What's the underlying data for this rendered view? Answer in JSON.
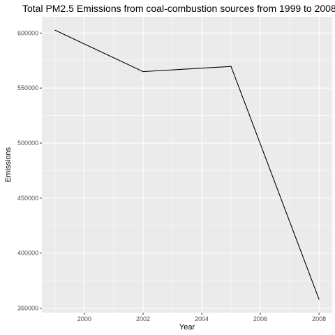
{
  "chart_data": {
    "type": "line",
    "title": "Total PM2.5 Emissions from coal-combustion sources from 1999 to 2008",
    "xlabel": "Year",
    "ylabel": "Emissions",
    "x": [
      1999,
      2002,
      2005,
      2008
    ],
    "y": [
      602624,
      564940,
      569654,
      358084
    ],
    "xlim": [
      1998.55,
      2008.45
    ],
    "ylim": [
      345900,
      614800
    ],
    "x_ticks": [
      2000,
      2002,
      2004,
      2006,
      2008
    ],
    "y_ticks": [
      350000,
      400000,
      450000,
      500000,
      550000,
      600000
    ],
    "x_tick_labels": [
      "2000",
      "2002",
      "2004",
      "2006",
      "2008"
    ],
    "y_tick_labels": [
      "350000",
      "400000",
      "450000",
      "500000",
      "550000",
      "600000"
    ],
    "grid": true,
    "line_color": "#000000",
    "panel_background": "#ebebeb",
    "grid_color": "#ffffff"
  }
}
